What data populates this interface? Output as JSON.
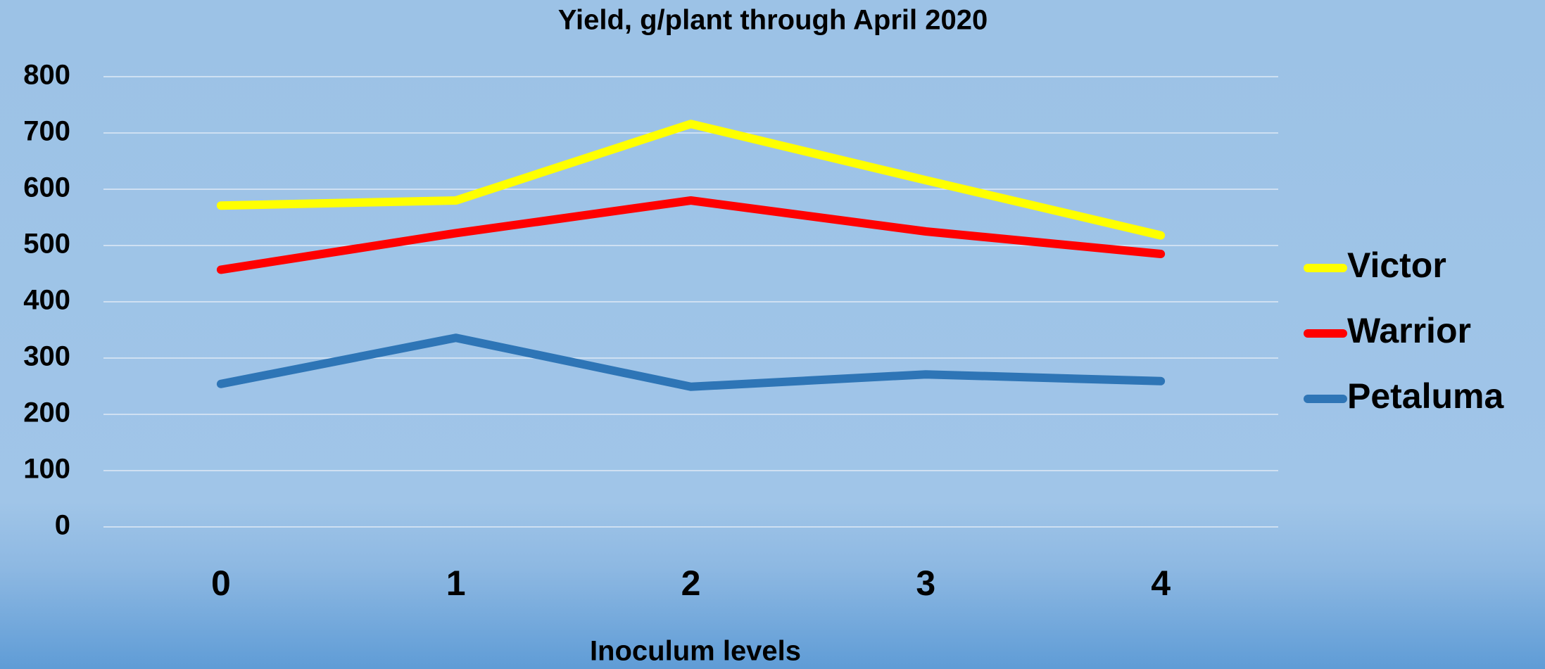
{
  "chart_data": {
    "type": "line",
    "title": "Yield, g/plant through April 2020",
    "x_label": "Inoculum levels",
    "categories": [
      "0",
      "1",
      "2",
      "3",
      "4"
    ],
    "series": [
      {
        "name": "Victor",
        "color": "#ffff00",
        "values": [
          571,
          580,
          716,
          616,
          518
        ]
      },
      {
        "name": "Warrior",
        "color": "#ff0000",
        "values": [
          457,
          522,
          580,
          525,
          485
        ]
      },
      {
        "name": "Petaluma",
        "color": "#2e75b6",
        "values": [
          254,
          336,
          249,
          271,
          259
        ]
      }
    ],
    "ylim": [
      0,
      800
    ],
    "yticks": [
      0,
      100,
      200,
      300,
      400,
      500,
      600,
      700,
      800
    ],
    "grid": true,
    "legend": "right"
  }
}
